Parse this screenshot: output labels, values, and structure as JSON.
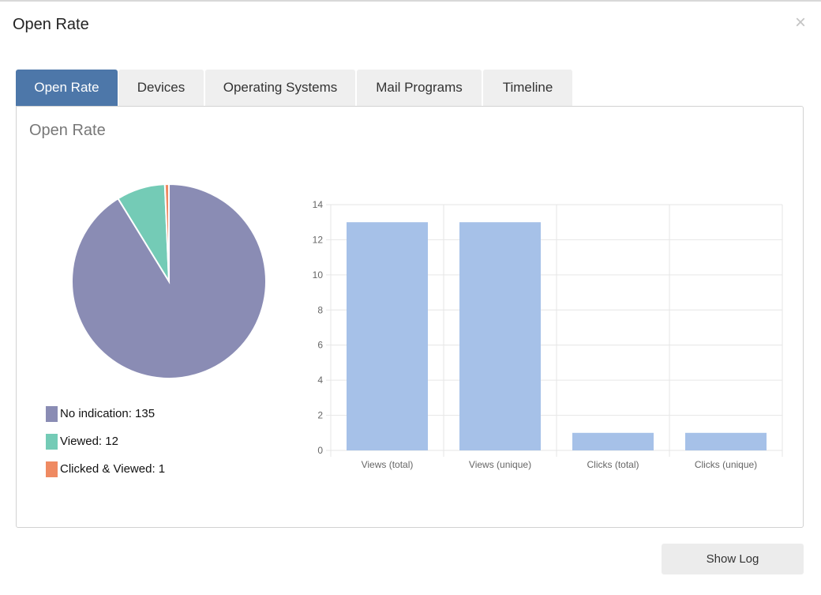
{
  "modal": {
    "title": "Open Rate",
    "close_icon": "close-icon"
  },
  "tabs": [
    {
      "label": "Open Rate",
      "active": true
    },
    {
      "label": "Devices",
      "active": false
    },
    {
      "label": "Operating Systems",
      "active": false
    },
    {
      "label": "Mail Programs",
      "active": false
    },
    {
      "label": "Timeline",
      "active": false
    }
  ],
  "panel": {
    "title": "Open Rate"
  },
  "colors": {
    "active_tab": "#4d77a9",
    "no_indication": "#8a8cb4",
    "viewed": "#74cbb6",
    "clicked_viewed": "#ef8a62",
    "bar": "#a6c1e8"
  },
  "chart_data": [
    {
      "type": "pie",
      "slices": [
        {
          "label": "No indication",
          "value": 135,
          "color": "#8a8cb4"
        },
        {
          "label": "Viewed",
          "value": 12,
          "color": "#74cbb6"
        },
        {
          "label": "Clicked & Viewed",
          "value": 1,
          "color": "#ef8a62"
        }
      ],
      "legend": [
        "No indication: 135",
        "Viewed: 12",
        "Clicked & Viewed: 1"
      ],
      "legend_position": "bottom"
    },
    {
      "type": "bar",
      "categories": [
        "Views (total)",
        "Views (unique)",
        "Clicks (total)",
        "Clicks (unique)"
      ],
      "values": [
        13,
        13,
        1,
        1
      ],
      "ylim": [
        0,
        14
      ],
      "yticks": [
        "0",
        "2",
        "4",
        "6",
        "8",
        "10",
        "12",
        "14"
      ],
      "grid": true,
      "color": "#a6c1e8"
    }
  ],
  "footer": {
    "show_log_label": "Show Log"
  }
}
